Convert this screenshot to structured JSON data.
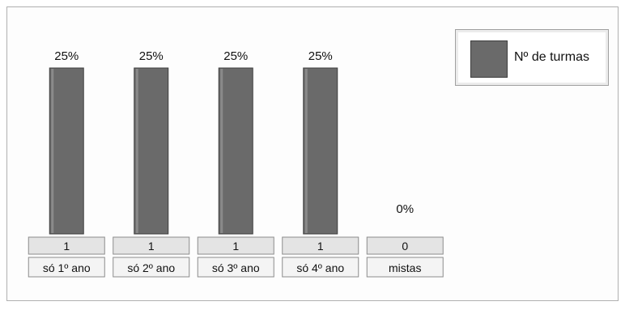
{
  "chart_data": {
    "type": "bar",
    "categories": [
      "só 1º ano",
      "só 2º ano",
      "só 3º ano",
      "só 4º ano",
      "mistas"
    ],
    "series": [
      {
        "name": "Nº de turmas",
        "values": [
          1,
          1,
          1,
          1,
          0
        ]
      }
    ],
    "data_labels": [
      "25%",
      "25%",
      "25%",
      "25%",
      "0%"
    ],
    "table_values": [
      "1",
      "1",
      "1",
      "1",
      "0"
    ],
    "ylim": [
      0,
      1
    ],
    "legend_position": "top-right",
    "bar_color": "#6a6a6a"
  }
}
